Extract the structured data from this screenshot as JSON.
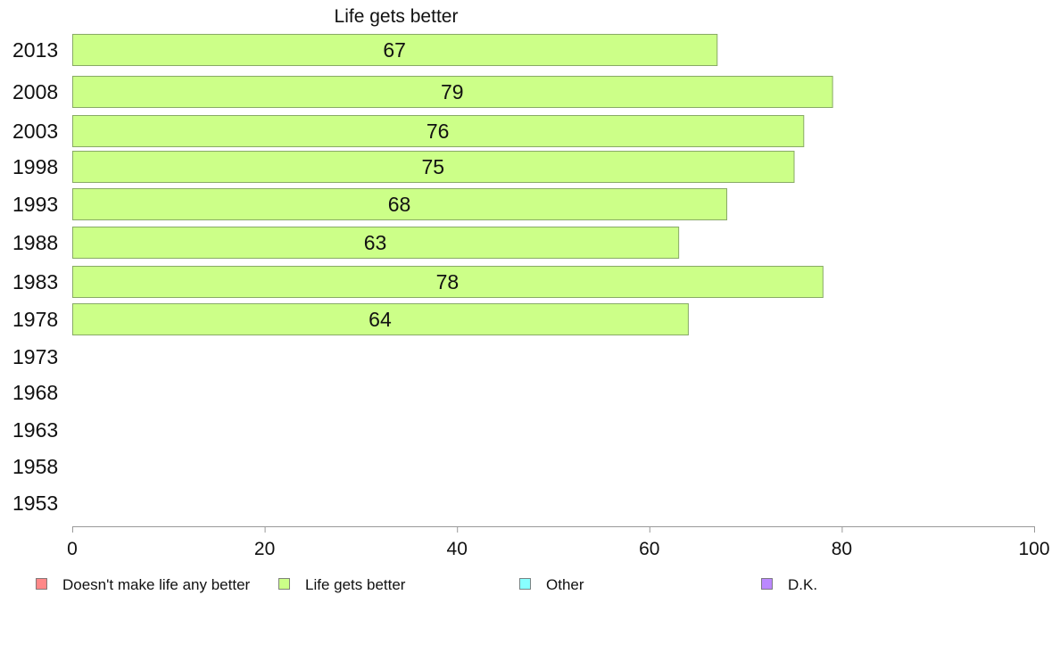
{
  "chart_data": {
    "type": "bar",
    "orientation": "horizontal",
    "title": "Life gets better",
    "categories": [
      "2013",
      "2008",
      "2003",
      "1998",
      "1993",
      "1988",
      "1983",
      "1978",
      "1973",
      "1968",
      "1963",
      "1958",
      "1953"
    ],
    "series": [
      {
        "name": "Life gets better",
        "color": "#ccff88",
        "values": [
          67,
          79,
          76,
          75,
          68,
          63,
          78,
          64,
          null,
          null,
          null,
          null,
          null
        ]
      }
    ],
    "xlim": [
      0,
      100
    ],
    "xticks": [
      0,
      20,
      40,
      60,
      80,
      100
    ],
    "grid": false,
    "legend_position": "bottom",
    "legend": [
      {
        "label": "Doesn't make life any better",
        "color": "#ff8888"
      },
      {
        "label": "Life gets better",
        "color": "#ccff88"
      },
      {
        "label": "Other",
        "color": "#88ffff"
      },
      {
        "label": "D.K.",
        "color": "#bb88ff"
      }
    ]
  }
}
